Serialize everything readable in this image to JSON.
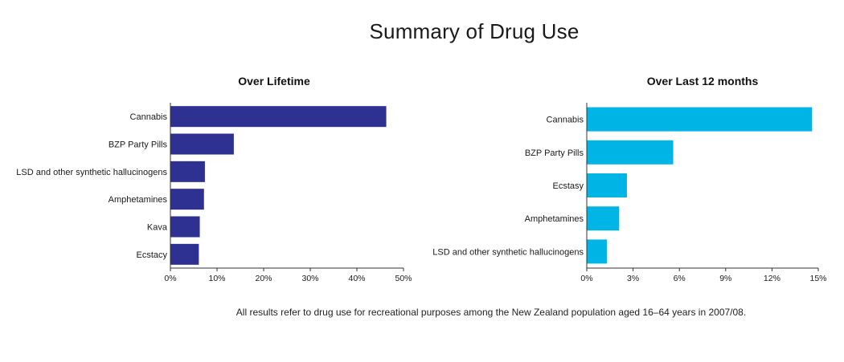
{
  "title": "Summary of Drug Use",
  "footnote": "All results refer to drug use for recreational purposes among the New Zealand population aged 16–64 years in 2007/08.",
  "chart_data": [
    {
      "type": "bar",
      "orientation": "horizontal",
      "title": "Over Lifetime",
      "color": "#2e3192",
      "categories": [
        "Cannabis",
        "BZP Party Pills",
        "LSD and other synthetic hallucinogens",
        "Amphetamines",
        "Kava",
        "Ecstacy"
      ],
      "values": [
        46.3,
        13.6,
        7.4,
        7.2,
        6.3,
        6.1
      ],
      "xlim": [
        0,
        50
      ],
      "ticks": [
        "0%",
        "10%",
        "20%",
        "30%",
        "40%",
        "50%"
      ],
      "grid": false
    },
    {
      "type": "bar",
      "orientation": "horizontal",
      "title": "Over Last 12 months",
      "color": "#00b5e6",
      "categories": [
        "Cannabis",
        "BZP Party Pills",
        "Ecstasy",
        "Amphetamines",
        "LSD and other synthetic hallucinogens"
      ],
      "values": [
        14.6,
        5.6,
        2.6,
        2.1,
        1.3
      ],
      "xlim": [
        0,
        15
      ],
      "ticks": [
        "0%",
        "3%",
        "6%",
        "9%",
        "12%",
        "15%"
      ],
      "grid": false
    }
  ]
}
